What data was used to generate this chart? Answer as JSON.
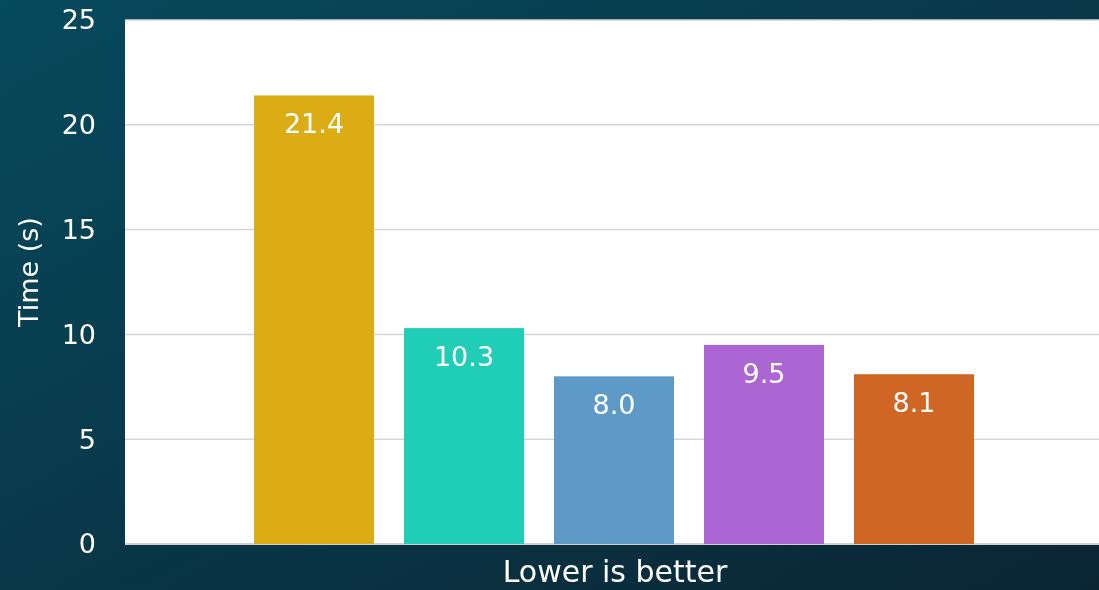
{
  "chart_data": {
    "type": "bar",
    "xlabel": "Lower is better",
    "ylabel": "Time (s)",
    "categories": [
      null,
      null,
      null,
      null,
      null
    ],
    "values": [
      21.4,
      10.3,
      8.0,
      9.5,
      8.1
    ],
    "colors": [
      "#dbac13",
      "#20cdb6",
      "#5e9ac8",
      "#ac66d3",
      "#d06624"
    ],
    "ylim": [
      0,
      25
    ],
    "yticks": [
      0,
      5,
      10,
      15,
      20,
      25
    ],
    "grid": "y",
    "data_labels": true,
    "value_labels": [
      "21.4",
      "10.3",
      "8.0",
      "9.5",
      "8.1"
    ]
  }
}
